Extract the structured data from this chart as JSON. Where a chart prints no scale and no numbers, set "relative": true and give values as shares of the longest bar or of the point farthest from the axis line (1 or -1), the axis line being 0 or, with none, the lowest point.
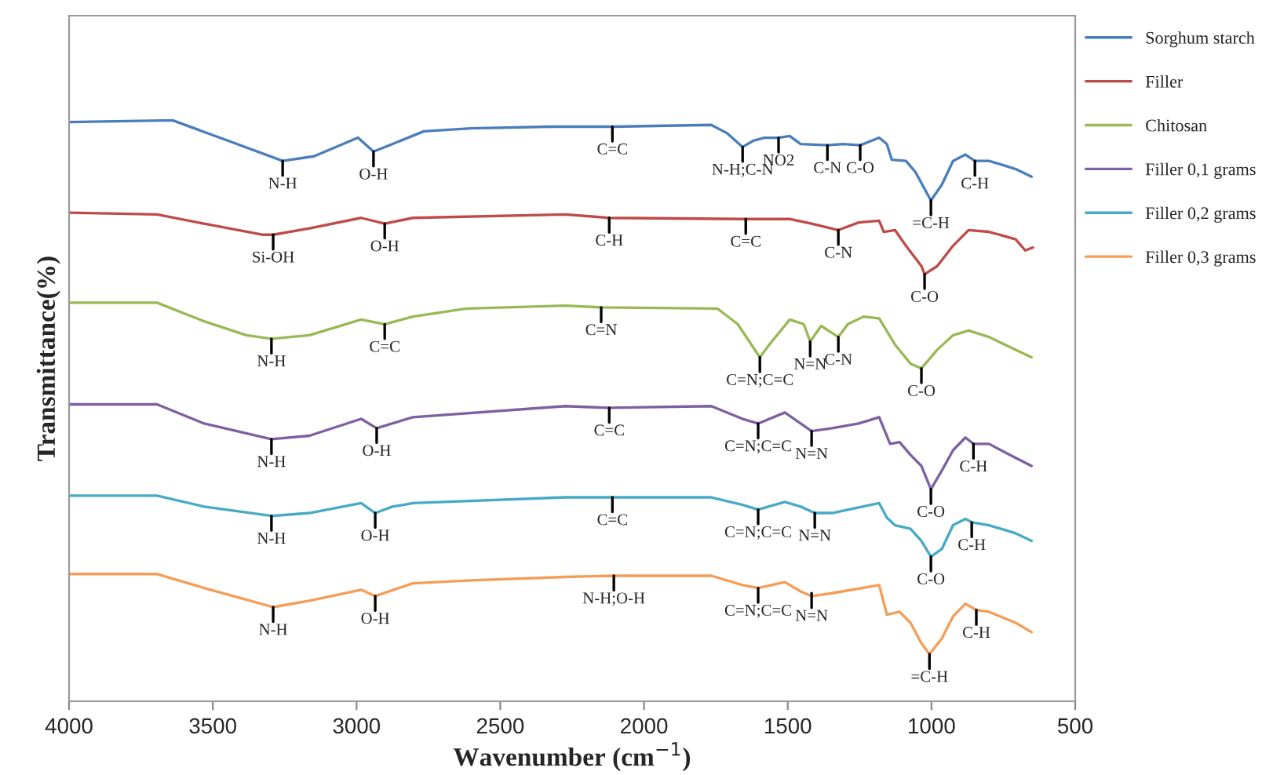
{
  "chart_data": {
    "type": "line",
    "relative": true,
    "xlabel": "Wavenumber (cm$^{−1}$)",
    "ylabel": "Transmittance(%)",
    "xlim": [
      4000,
      500
    ],
    "xticks": [
      4000,
      3500,
      3000,
      2500,
      2000,
      1500,
      1000,
      500
    ],
    "legend": "right",
    "grid": false,
    "series": [
      {
        "name": "Sorghum starch",
        "color": "#4a7ebb",
        "x": [
          4000,
          3640,
          3448,
          3257,
          3148,
          2995,
          2941,
          2886,
          2766,
          2602,
          2329,
          2110,
          1766,
          1712,
          1657,
          1619,
          1581,
          1532,
          1493,
          1455,
          1362,
          1308,
          1248,
          1182,
          1155,
          1138,
          1089,
          1056,
          1002,
          964,
          925,
          882,
          849,
          800,
          745,
          707,
          652
        ],
        "values": [
          0.997,
          1.0,
          0.965,
          0.93,
          0.938,
          0.97,
          0.946,
          0.957,
          0.981,
          0.986,
          0.989,
          0.989,
          0.992,
          0.978,
          0.954,
          0.965,
          0.97,
          0.97,
          0.973,
          0.959,
          0.957,
          0.959,
          0.957,
          0.97,
          0.959,
          0.932,
          0.93,
          0.911,
          0.862,
          0.889,
          0.93,
          0.941,
          0.93,
          0.93,
          0.922,
          0.916,
          0.903
        ]
      },
      {
        "name": "Filler",
        "color": "#be4b48",
        "x": [
          4000,
          3694,
          3530,
          3328,
          3290,
          3164,
          2984,
          2902,
          2804,
          2274,
          2121,
          1646,
          1493,
          1417,
          1324,
          1253,
          1182,
          1166,
          1127,
          1089,
          1035,
          1024,
          980,
          925,
          871,
          800,
          707,
          674,
          647
        ],
        "values": [
          0.841,
          0.838,
          0.822,
          0.803,
          0.803,
          0.814,
          0.832,
          0.822,
          0.832,
          0.838,
          0.832,
          0.83,
          0.83,
          0.822,
          0.811,
          0.824,
          0.827,
          0.808,
          0.811,
          0.784,
          0.749,
          0.735,
          0.749,
          0.784,
          0.811,
          0.808,
          0.795,
          0.776,
          0.781
        ]
      },
      {
        "name": "Chitosan",
        "color": "#98b954",
        "x": [
          4000,
          3694,
          3530,
          3383,
          3296,
          3164,
          2984,
          2902,
          2804,
          2618,
          2274,
          2149,
          1745,
          1674,
          1597,
          1564,
          1493,
          1444,
          1422,
          1384,
          1324,
          1291,
          1237,
          1182,
          1127,
          1073,
          1035,
          980,
          925,
          871,
          800,
          707,
          652
        ],
        "values": [
          0.686,
          0.686,
          0.654,
          0.63,
          0.624,
          0.63,
          0.657,
          0.649,
          0.662,
          0.676,
          0.681,
          0.678,
          0.676,
          0.649,
          0.592,
          0.614,
          0.657,
          0.649,
          0.619,
          0.646,
          0.627,
          0.649,
          0.662,
          0.659,
          0.614,
          0.581,
          0.573,
          0.605,
          0.63,
          0.638,
          0.627,
          0.605,
          0.592
        ]
      },
      {
        "name": "Filler 0,1 grams",
        "color": "#7d60a0",
        "x": [
          4000,
          3694,
          3530,
          3296,
          3164,
          2984,
          2930,
          2804,
          2274,
          2121,
          1766,
          1657,
          1603,
          1510,
          1455,
          1417,
          1346,
          1253,
          1182,
          1144,
          1111,
          1073,
          1035,
          1002,
          964,
          925,
          882,
          854,
          800,
          707,
          652
        ],
        "values": [
          0.511,
          0.511,
          0.478,
          0.451,
          0.457,
          0.486,
          0.47,
          0.489,
          0.508,
          0.505,
          0.508,
          0.486,
          0.478,
          0.497,
          0.478,
          0.465,
          0.47,
          0.478,
          0.489,
          0.443,
          0.446,
          0.424,
          0.405,
          0.365,
          0.397,
          0.432,
          0.454,
          0.443,
          0.443,
          0.419,
          0.405
        ]
      },
      {
        "name": "Filler 0,2 grams",
        "color": "#46aac5",
        "x": [
          4000,
          3694,
          3530,
          3296,
          3164,
          2984,
          2935,
          2875,
          2837,
          2804,
          2274,
          2110,
          1766,
          1657,
          1603,
          1510,
          1455,
          1406,
          1346,
          1182,
          1155,
          1127,
          1073,
          1035,
          1002,
          964,
          925,
          882,
          860,
          800,
          707,
          652
        ],
        "values": [
          0.354,
          0.354,
          0.335,
          0.319,
          0.324,
          0.341,
          0.324,
          0.335,
          0.338,
          0.341,
          0.351,
          0.351,
          0.351,
          0.338,
          0.33,
          0.343,
          0.335,
          0.324,
          0.324,
          0.341,
          0.316,
          0.303,
          0.297,
          0.276,
          0.249,
          0.262,
          0.303,
          0.314,
          0.308,
          0.303,
          0.289,
          0.276
        ]
      },
      {
        "name": "Filler 0,3 grams",
        "color": "#f59d56",
        "x": [
          4000,
          3694,
          3530,
          3290,
          3164,
          2984,
          2935,
          2804,
          2602,
          2274,
          2105,
          1766,
          1657,
          1603,
          1510,
          1455,
          1417,
          1346,
          1182,
          1155,
          1111,
          1073,
          1035,
          1007,
          964,
          925,
          882,
          844,
          800,
          707,
          652
        ],
        "values": [
          0.219,
          0.219,
          0.195,
          0.162,
          0.173,
          0.192,
          0.181,
          0.203,
          0.208,
          0.214,
          0.216,
          0.216,
          0.2,
          0.195,
          0.205,
          0.189,
          0.181,
          0.186,
          0.2,
          0.149,
          0.154,
          0.135,
          0.1,
          0.081,
          0.108,
          0.146,
          0.168,
          0.157,
          0.154,
          0.135,
          0.119
        ]
      }
    ],
    "annotations": [
      {
        "text": "N-H",
        "x": 3257,
        "y": 0.93
      },
      {
        "text": "O-H",
        "x": 2941,
        "y": 0.946
      },
      {
        "text": "C=C",
        "x": 2110,
        "y": 0.989
      },
      {
        "text": "N-H;C-N",
        "x": 1657,
        "y": 0.954
      },
      {
        "text": "NO2",
        "x": 1532,
        "y": 0.97
      },
      {
        "text": "C-N",
        "x": 1362,
        "y": 0.957
      },
      {
        "text": "C-O",
        "x": 1248,
        "y": 0.957
      },
      {
        "text": "=C-H",
        "x": 1002,
        "y": 0.862
      },
      {
        "text": "C-H",
        "x": 849,
        "y": 0.93
      },
      {
        "text": "Si-OH",
        "x": 3290,
        "y": 0.803
      },
      {
        "text": "O-H",
        "x": 2902,
        "y": 0.822
      },
      {
        "text": "C-H",
        "x": 2121,
        "y": 0.832
      },
      {
        "text": "C=C",
        "x": 1646,
        "y": 0.83
      },
      {
        "text": "C-N",
        "x": 1324,
        "y": 0.811
      },
      {
        "text": "C-O",
        "x": 1024,
        "y": 0.735
      },
      {
        "text": "N-H",
        "x": 3296,
        "y": 0.624
      },
      {
        "text": "C=C",
        "x": 2902,
        "y": 0.649
      },
      {
        "text": "C=N",
        "x": 2149,
        "y": 0.678
      },
      {
        "text": "C=N;C=C",
        "x": 1597,
        "y": 0.592
      },
      {
        "text": "N=N",
        "x": 1422,
        "y": 0.619
      },
      {
        "text": "C-N",
        "x": 1324,
        "y": 0.627
      },
      {
        "text": "C-O",
        "x": 1035,
        "y": 0.573
      },
      {
        "text": "N-H",
        "x": 3296,
        "y": 0.451
      },
      {
        "text": "O-H",
        "x": 2930,
        "y": 0.47
      },
      {
        "text": "C=C",
        "x": 2121,
        "y": 0.505
      },
      {
        "text": "C=N;C=C",
        "x": 1603,
        "y": 0.478
      },
      {
        "text": "N=N",
        "x": 1417,
        "y": 0.465
      },
      {
        "text": "C-O",
        "x": 1002,
        "y": 0.365
      },
      {
        "text": "C-H",
        "x": 854,
        "y": 0.443
      },
      {
        "text": "N-H",
        "x": 3296,
        "y": 0.319
      },
      {
        "text": "O-H",
        "x": 2935,
        "y": 0.324
      },
      {
        "text": "C=C",
        "x": 2110,
        "y": 0.351
      },
      {
        "text": "C=N;C=C",
        "x": 1603,
        "y": 0.33
      },
      {
        "text": "N=N",
        "x": 1406,
        "y": 0.324
      },
      {
        "text": "C-O",
        "x": 1002,
        "y": 0.249
      },
      {
        "text": "C-H",
        "x": 860,
        "y": 0.308
      },
      {
        "text": "N-H",
        "x": 3290,
        "y": 0.162
      },
      {
        "text": "O-H",
        "x": 2935,
        "y": 0.181
      },
      {
        "text": "N-H;O-H",
        "x": 2105,
        "y": 0.216
      },
      {
        "text": "C=N;C=C",
        "x": 1603,
        "y": 0.195
      },
      {
        "text": "N=N",
        "x": 1417,
        "y": 0.186
      },
      {
        "text": "=C-H",
        "x": 1007,
        "y": 0.081
      },
      {
        "text": "C-H",
        "x": 844,
        "y": 0.157
      }
    ]
  }
}
